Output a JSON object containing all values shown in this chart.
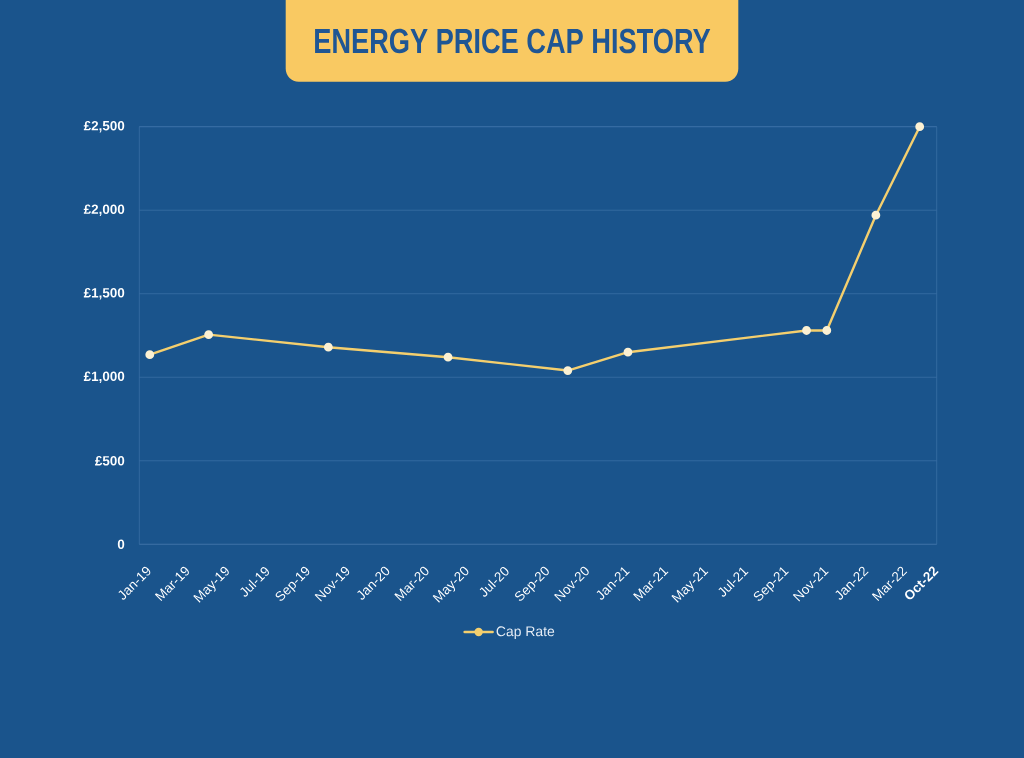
{
  "chart_data": {
    "type": "line",
    "title": "ENERGY PRICE CAP HISTORY",
    "x": [
      "2019-01",
      "2019-04",
      "2019-10",
      "2020-04",
      "2020-10",
      "2021-01",
      "2021-10",
      "2021-11",
      "2022-01-15",
      "2022-03-23"
    ],
    "series": [
      {
        "name": "Cap Rate",
        "color": "#f4cf6e",
        "values": [
          1135,
          1255,
          1180,
          1120,
          1040,
          1150,
          1280,
          1280,
          1970,
          2500
        ]
      }
    ],
    "xlim": [
      "2018-12-16",
      "2022-04-18"
    ],
    "xticks": [
      {
        "value": "2019-01",
        "label": "Jan-19"
      },
      {
        "value": "2019-03",
        "label": "Mar-19"
      },
      {
        "value": "2019-05",
        "label": "May-19"
      },
      {
        "value": "2019-07",
        "label": "Jul-19"
      },
      {
        "value": "2019-09",
        "label": "Sep-19"
      },
      {
        "value": "2019-11",
        "label": "Nov-19"
      },
      {
        "value": "2020-01",
        "label": "Jan-20"
      },
      {
        "value": "2020-03",
        "label": "Mar-20"
      },
      {
        "value": "2020-05",
        "label": "May-20"
      },
      {
        "value": "2020-07",
        "label": "Jul-20"
      },
      {
        "value": "2020-09",
        "label": "Sep-20"
      },
      {
        "value": "2020-11",
        "label": "Nov-20"
      },
      {
        "value": "2021-01",
        "label": "Jan-21"
      },
      {
        "value": "2021-03",
        "label": "Mar-21"
      },
      {
        "value": "2021-05",
        "label": "May-21"
      },
      {
        "value": "2021-07",
        "label": "Jul-21"
      },
      {
        "value": "2021-09",
        "label": "Sep-21"
      },
      {
        "value": "2021-11",
        "label": "Nov-21"
      },
      {
        "value": "2022-01",
        "label": "Jan-22"
      },
      {
        "value": "2022-03",
        "label": "Mar-22"
      }
    ],
    "annotations": [
      "Oct-22"
    ],
    "ylim": [
      0,
      2500
    ],
    "yticks": [
      0,
      {
        "value": 500,
        "label": "£500"
      },
      {
        "value": 1000,
        "label": "£1,000"
      },
      {
        "value": 1500,
        "label": "£1,500"
      },
      {
        "value": 2000,
        "label": "£2,000"
      },
      {
        "value": 2500,
        "label": "£2,500"
      }
    ],
    "grid": "y",
    "legend": "bottom",
    "marker": "circle",
    "line_style": "solid"
  }
}
